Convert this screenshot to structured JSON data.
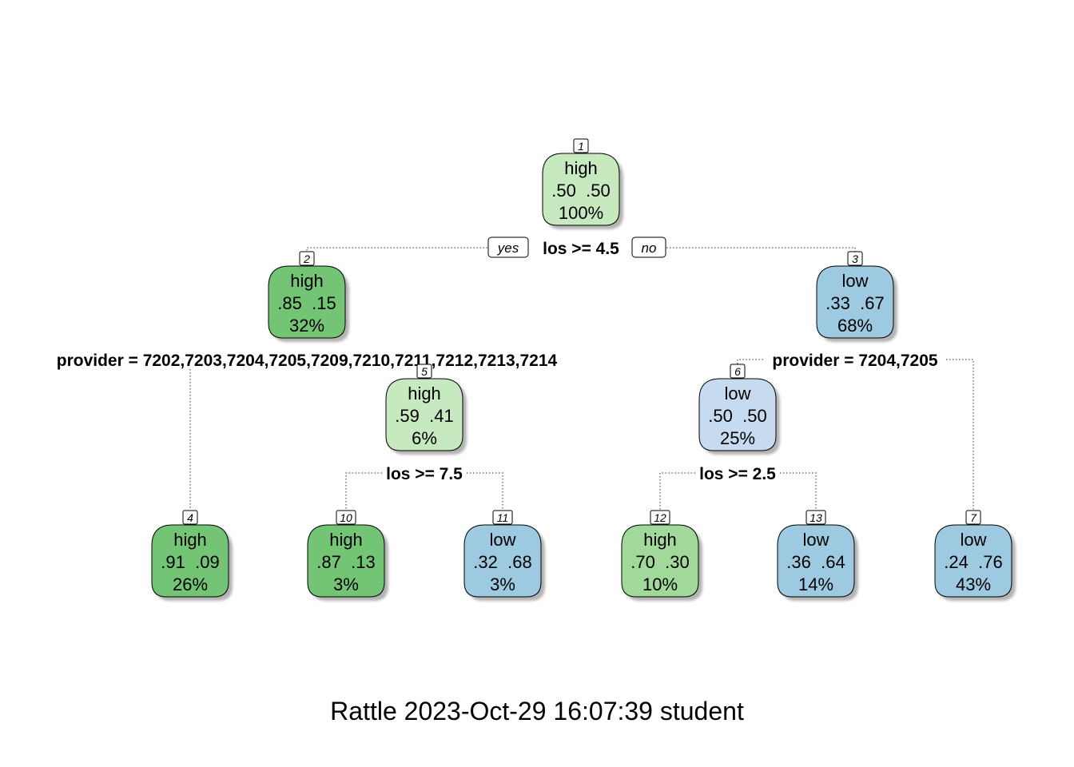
{
  "nodes": [
    {
      "id": "1",
      "cls": "high",
      "probs": ".50  .50",
      "pct": "100%",
      "fill": "#c7e9c0"
    },
    {
      "id": "2",
      "cls": "high",
      "probs": ".85  .15",
      "pct": "32%",
      "fill": "#74c476"
    },
    {
      "id": "3",
      "cls": "low",
      "probs": ".33  .67",
      "pct": "68%",
      "fill": "#9ecae1"
    },
    {
      "id": "4",
      "cls": "high",
      "probs": ".91  .09",
      "pct": "26%",
      "fill": "#74c476"
    },
    {
      "id": "5",
      "cls": "high",
      "probs": ".59  .41",
      "pct": "6%",
      "fill": "#c7e9c0"
    },
    {
      "id": "6",
      "cls": "low",
      "probs": ".50  .50",
      "pct": "25%",
      "fill": "#c6dbef"
    },
    {
      "id": "7",
      "cls": "low",
      "probs": ".24  .76",
      "pct": "43%",
      "fill": "#9ecae1"
    },
    {
      "id": "10",
      "cls": "high",
      "probs": ".87  .13",
      "pct": "3%",
      "fill": "#74c476"
    },
    {
      "id": "11",
      "cls": "low",
      "probs": ".32  .68",
      "pct": "3%",
      "fill": "#9ecae1"
    },
    {
      "id": "12",
      "cls": "high",
      "probs": ".70  .30",
      "pct": "10%",
      "fill": "#a1d99b"
    },
    {
      "id": "13",
      "cls": "low",
      "probs": ".36  .64",
      "pct": "14%",
      "fill": "#9ecae1"
    }
  ],
  "splits": [
    {
      "node": "1",
      "label": "los >= 4.5"
    },
    {
      "node": "2",
      "label": "provider = 7202,7203,7204,7205,7209,7210,7211,7212,7213,7214"
    },
    {
      "node": "3",
      "label": "provider = 7204,7205"
    },
    {
      "node": "5",
      "label": "los >= 7.5"
    },
    {
      "node": "6",
      "label": "los >= 2.5"
    }
  ],
  "branch_labels": {
    "yes": "yes",
    "no": "no"
  },
  "footer": "Rattle 2023-Oct-29 16:07:39 student"
}
